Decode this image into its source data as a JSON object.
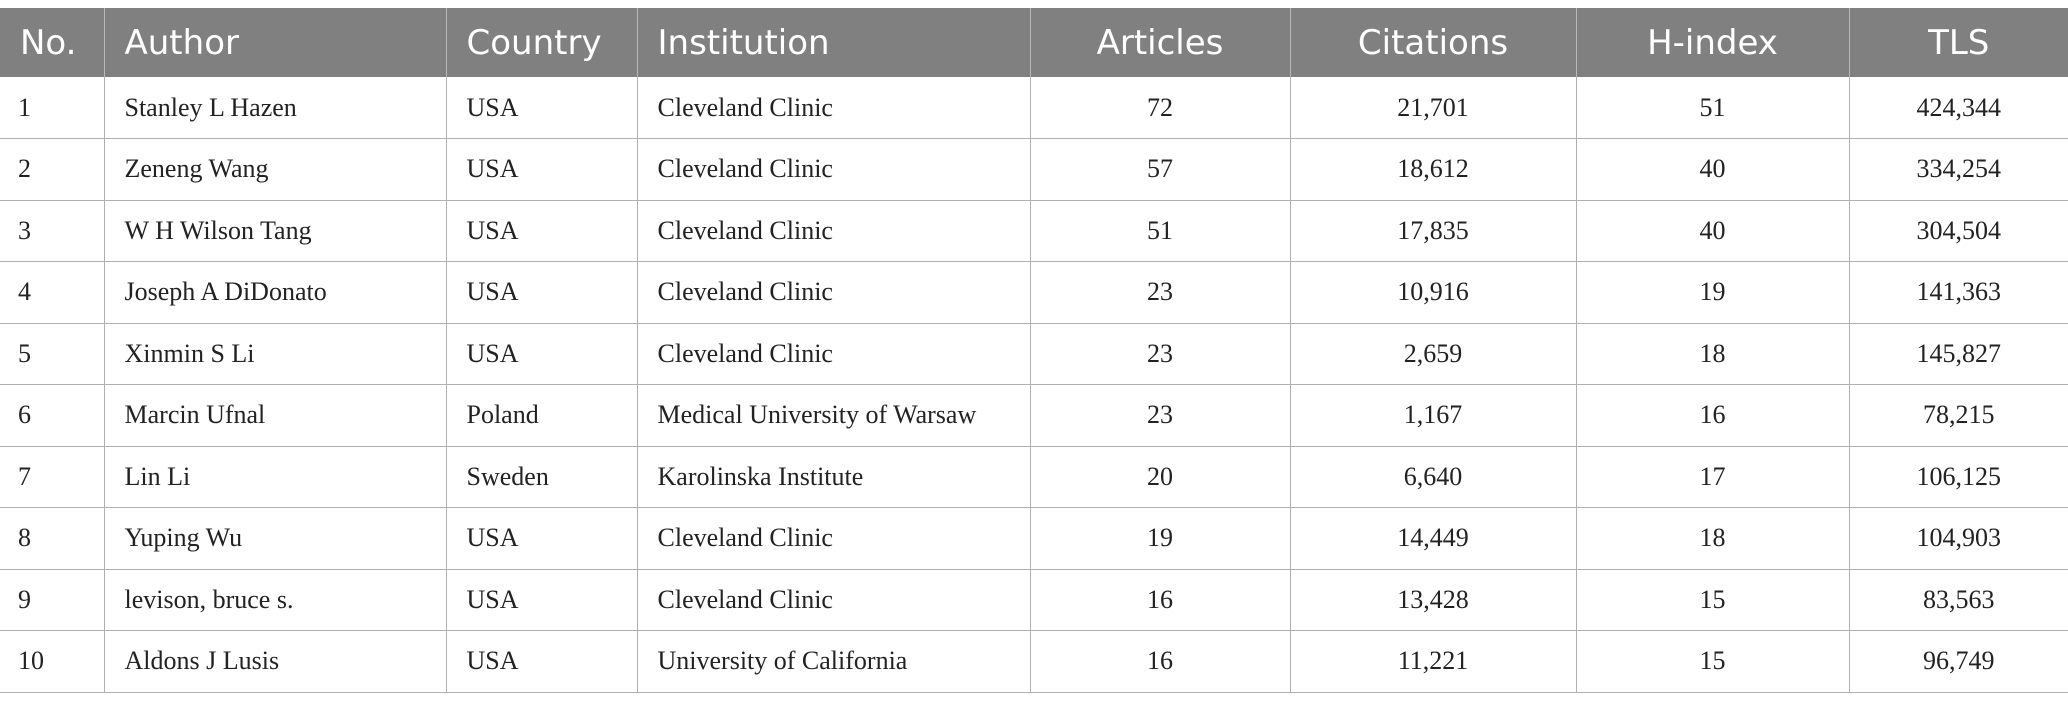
{
  "table": {
    "headers": [
      "No.",
      "Author",
      "Country",
      "Institution",
      "Articles",
      "Citations",
      "H-index",
      "TLS"
    ],
    "rows": [
      [
        "1",
        "Stanley L Hazen",
        "USA",
        "Cleveland Clinic",
        "72",
        "21,701",
        "51",
        "424,344"
      ],
      [
        "2",
        "Zeneng Wang",
        "USA",
        "Cleveland Clinic",
        "57",
        "18,612",
        "40",
        "334,254"
      ],
      [
        "3",
        "W H Wilson Tang",
        "USA",
        "Cleveland Clinic",
        "51",
        "17,835",
        "40",
        "304,504"
      ],
      [
        "4",
        "Joseph A DiDonato",
        "USA",
        "Cleveland Clinic",
        "23",
        "10,916",
        "19",
        "141,363"
      ],
      [
        "5",
        "Xinmin S Li",
        "USA",
        "Cleveland Clinic",
        "23",
        "2,659",
        "18",
        "145,827"
      ],
      [
        "6",
        "Marcin Ufnal",
        "Poland",
        "Medical University of Warsaw",
        "23",
        "1,167",
        "16",
        "78,215"
      ],
      [
        "7",
        "Lin Li",
        "Sweden",
        "Karolinska Institute",
        "20",
        "6,640",
        "17",
        "106,125"
      ],
      [
        "8",
        "Yuping Wu",
        "USA",
        "Cleveland Clinic",
        "19",
        "14,449",
        "18",
        "104,903"
      ],
      [
        "9",
        "levison, bruce s.",
        "USA",
        "Cleveland Clinic",
        "16",
        "13,428",
        "15",
        "83,563"
      ],
      [
        "10",
        "Aldons J Lusis",
        "USA",
        "University of California",
        "16",
        "11,221",
        "15",
        "96,749"
      ]
    ]
  }
}
